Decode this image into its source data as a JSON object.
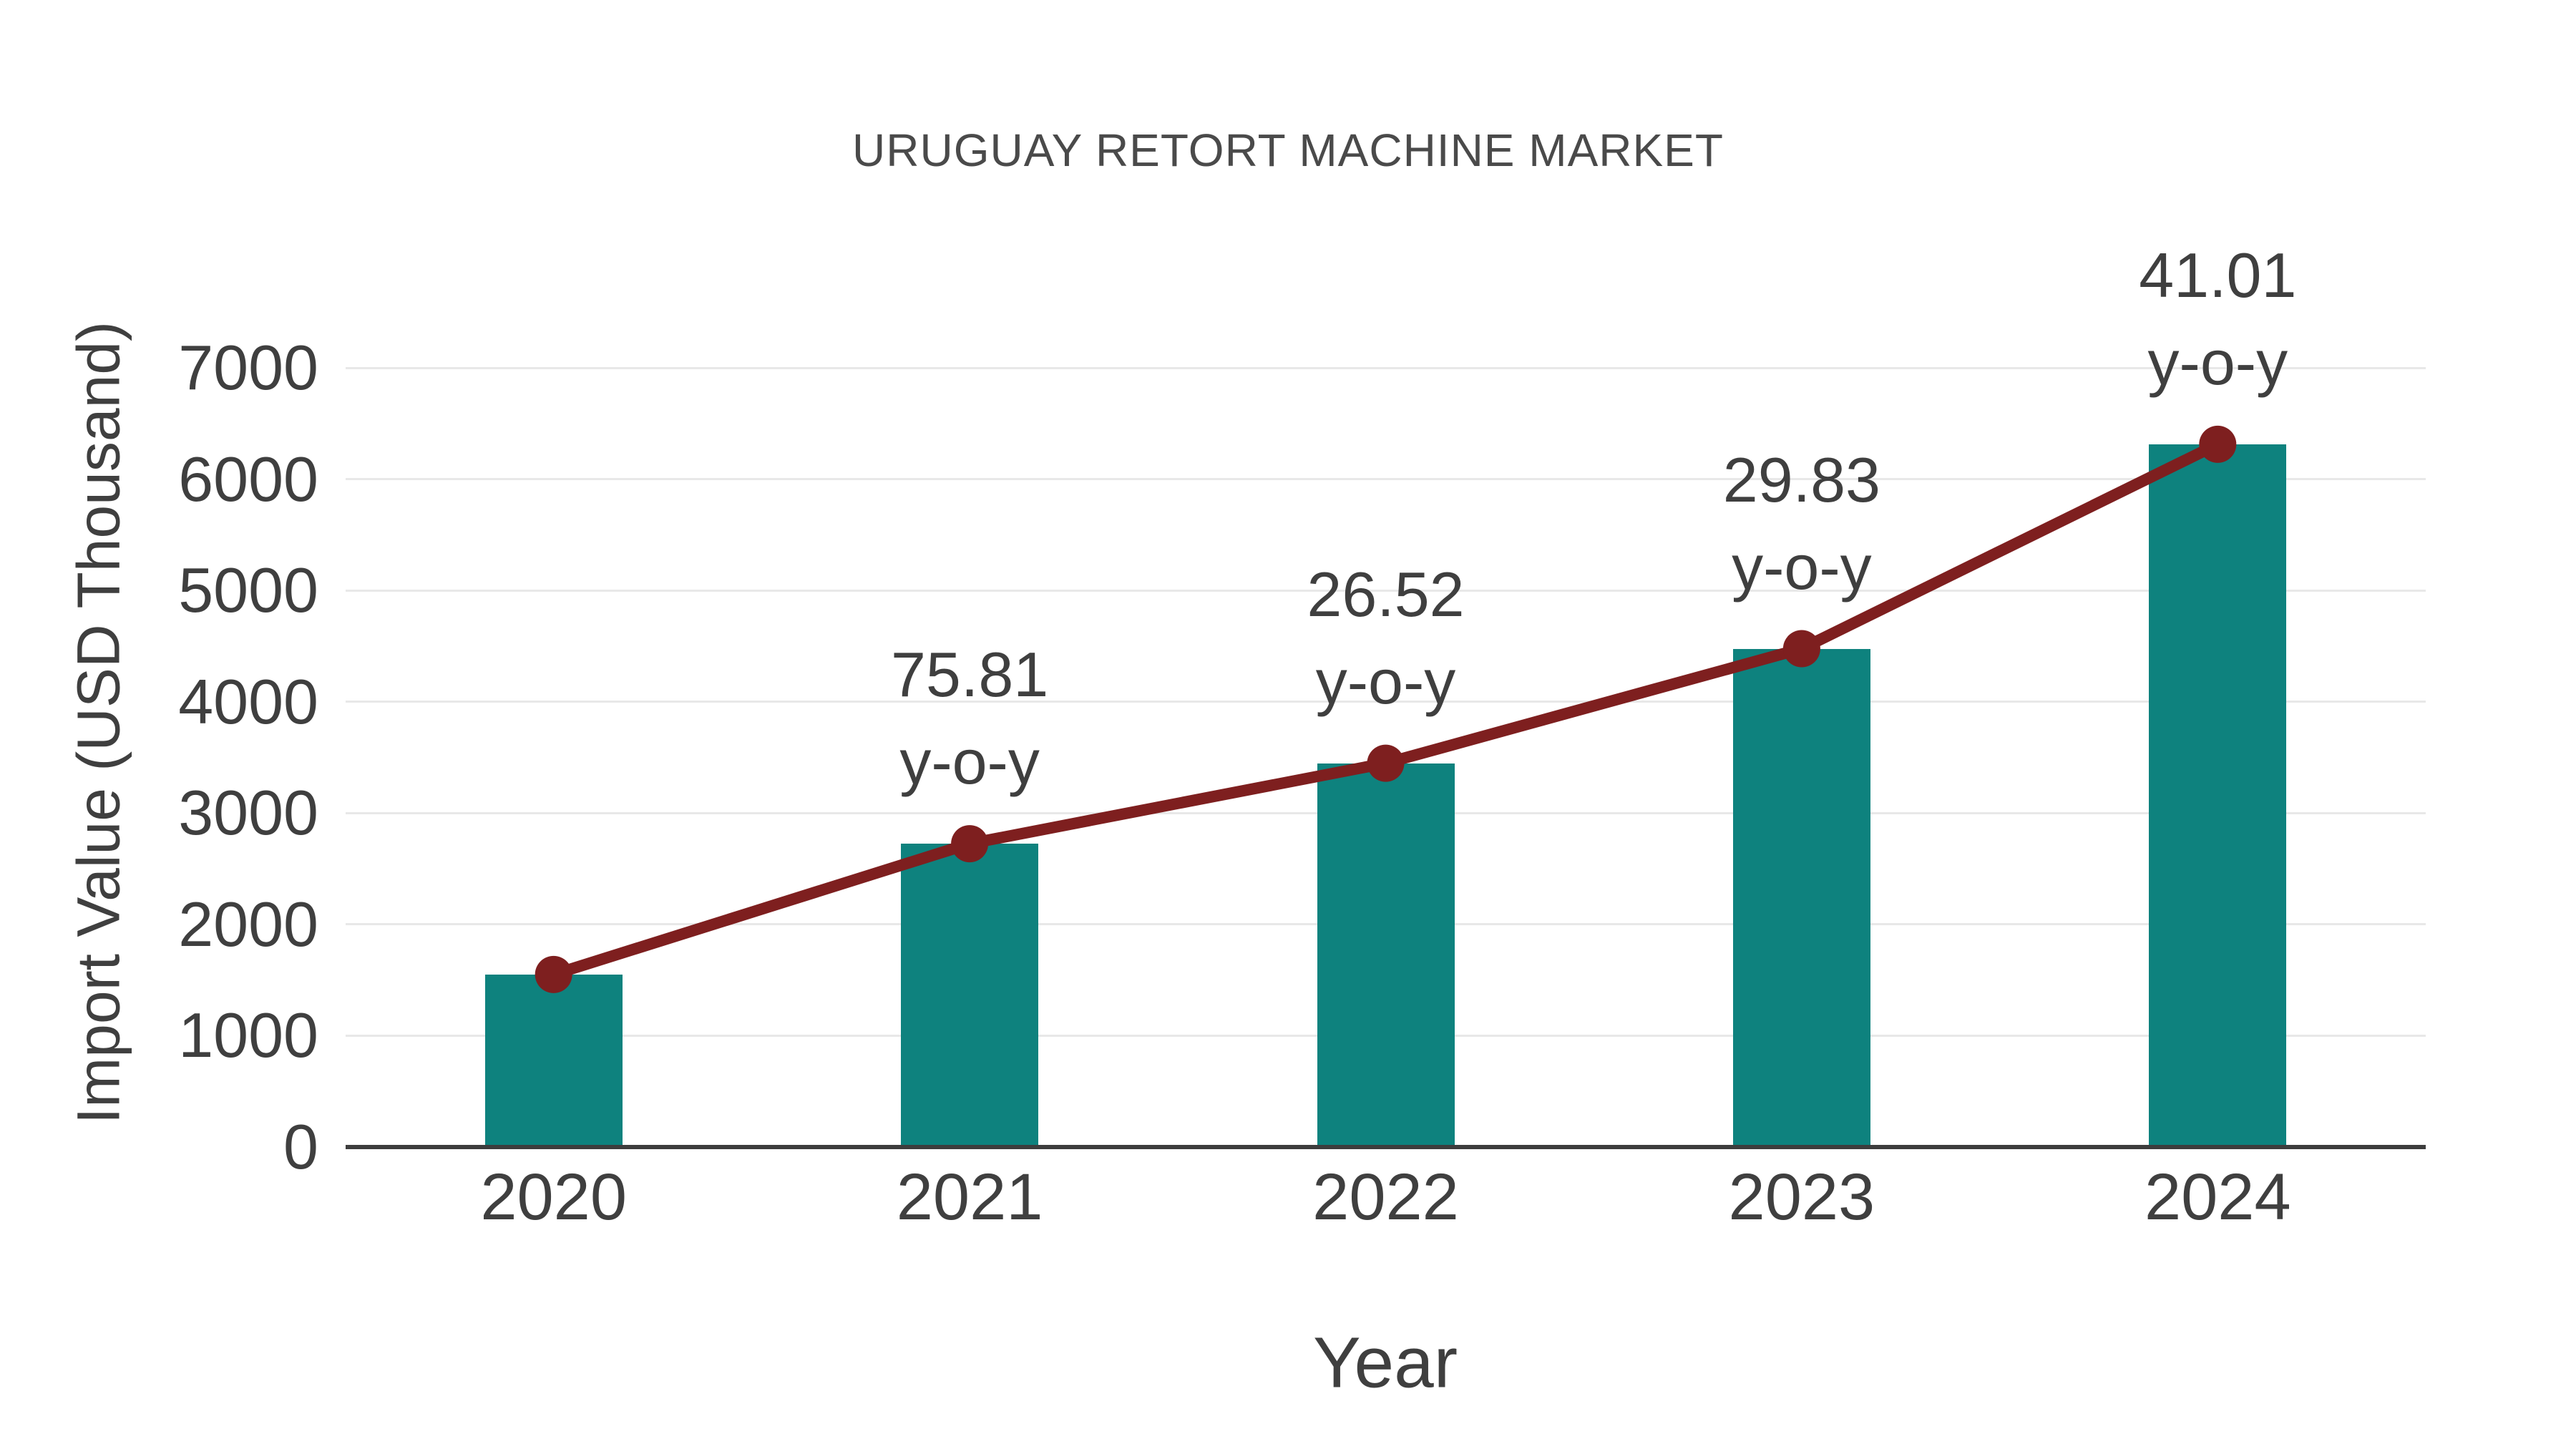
{
  "chart_data": {
    "type": "bar",
    "title": "URUGUAY RETORT MACHINE MARKET",
    "xlabel": "Year",
    "ylabel": "Import Value (USD Thousand)",
    "categories": [
      "2020",
      "2021",
      "2022",
      "2023",
      "2024"
    ],
    "series": [
      {
        "name": "Import Value (USD Thousand)",
        "type": "bar",
        "values": [
          1550,
          2725,
          3448,
          4477,
          6313
        ]
      },
      {
        "name": "y-o-y growth",
        "type": "line",
        "values": [
          1550,
          2725,
          3448,
          4477,
          6313
        ],
        "point_labels": [
          null,
          "75.81",
          "26.52",
          "29.83",
          "41.01"
        ],
        "point_label_suffix": "y-o-y"
      }
    ],
    "yticks": [
      0,
      1000,
      2000,
      3000,
      4000,
      5000,
      6000,
      7000
    ],
    "ylim": [
      0,
      7000
    ],
    "grid": "horizontal",
    "legend_position": "none",
    "colors": {
      "bar": "#0E827E",
      "line": "#7E1F1F",
      "marker": "#7E1F1F",
      "grid": "#E8E8E8",
      "axis": "#3D3D3D",
      "text": "#3F3F3F",
      "title_text": "#4A4A4A",
      "background": "#FFFFFF"
    }
  }
}
